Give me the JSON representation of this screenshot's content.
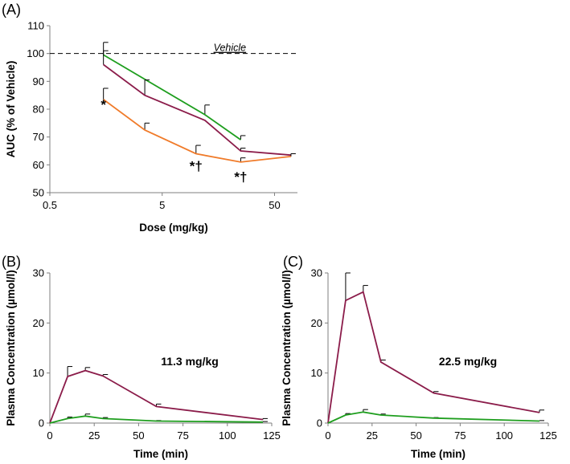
{
  "chart_data": [
    {
      "panel": "(A)",
      "type": "line",
      "xscale": "log",
      "xlabel": "Dose (mg/kg)",
      "ylabel": "AUC (% of Vehicle)",
      "xlim": [
        0.5,
        80
      ],
      "ylim": [
        50,
        110
      ],
      "xticks": [
        "0.5",
        "5",
        "50"
      ],
      "xtick_values": [
        0.5,
        5,
        50
      ],
      "yticks": [
        50,
        60,
        70,
        80,
        90,
        100,
        110
      ],
      "reference_line": {
        "label": "Vehicle",
        "y": 100
      },
      "series": [
        {
          "name": "green",
          "color": "#1e9e1e",
          "x": [
            1.5,
            12,
            25
          ],
          "y": [
            99.5,
            78,
            69
          ],
          "err": [
            4.5,
            3.5,
            1.5
          ]
        },
        {
          "name": "purple",
          "color": "#8b1c4a",
          "x": [
            1.5,
            3.5,
            12,
            25,
            70
          ],
          "y": [
            96,
            85,
            76,
            65,
            63.5
          ],
          "err": [
            5,
            5.5,
            0,
            1,
            0
          ]
        },
        {
          "name": "orange",
          "color": "#f07b2a",
          "x": [
            1.5,
            3.5,
            10,
            25,
            70
          ],
          "y": [
            83.5,
            72.5,
            64,
            61,
            63
          ],
          "err": [
            4,
            2.5,
            3,
            1.5,
            1
          ]
        }
      ],
      "annotations": [
        {
          "text": "*",
          "x": 1.5,
          "y": 80
        },
        {
          "text": "*†",
          "x": 10,
          "y": 58
        },
        {
          "text": "*†",
          "x": 25,
          "y": 54
        }
      ]
    },
    {
      "panel": "(B)",
      "type": "line",
      "xlabel": "Time (min)",
      "ylabel": "Plasma Concentration (µmol/l)",
      "xlim": [
        0,
        125
      ],
      "ylim": [
        0,
        30
      ],
      "xticks": [
        0,
        25,
        50,
        75,
        100,
        125
      ],
      "yticks": [
        0,
        10,
        20,
        30
      ],
      "dose_label": "11.3 mg/kg",
      "series": [
        {
          "name": "purple",
          "color": "#8b1c4a",
          "x": [
            0,
            10,
            20,
            30,
            60,
            120
          ],
          "y": [
            0,
            9.3,
            10.5,
            9.4,
            3.3,
            0.7
          ],
          "err": [
            0,
            2,
            0.6,
            0.3,
            0.5,
            0.2
          ]
        },
        {
          "name": "green",
          "color": "#1e9e1e",
          "x": [
            0,
            10,
            20,
            30,
            60,
            120
          ],
          "y": [
            0,
            0.9,
            1.4,
            0.9,
            0.4,
            0.2
          ],
          "err": [
            0,
            0.3,
            0.4,
            0.2,
            0.1,
            0.1
          ]
        }
      ]
    },
    {
      "panel": "(C)",
      "type": "line",
      "xlabel": "Time (min)",
      "ylabel": "Plasma Concentration (µmol/l)",
      "xlim": [
        0,
        125
      ],
      "ylim": [
        0,
        30
      ],
      "xticks": [
        0,
        25,
        50,
        75,
        100,
        125
      ],
      "yticks": [
        0,
        10,
        20,
        30
      ],
      "dose_label": "22.5 mg/kg",
      "series": [
        {
          "name": "purple",
          "color": "#8b1c4a",
          "x": [
            0,
            10,
            20,
            30,
            60,
            120
          ],
          "y": [
            0,
            24.5,
            26.2,
            12.2,
            6,
            2.1
          ],
          "err": [
            0,
            5.5,
            1.3,
            0.4,
            0.3,
            0.5
          ]
        },
        {
          "name": "green",
          "color": "#1e9e1e",
          "x": [
            0,
            10,
            20,
            30,
            60,
            120
          ],
          "y": [
            0,
            1.6,
            2.2,
            1.6,
            1,
            0.4
          ],
          "err": [
            0,
            0.3,
            0.5,
            0.2,
            0.1,
            0.1
          ]
        }
      ]
    }
  ]
}
